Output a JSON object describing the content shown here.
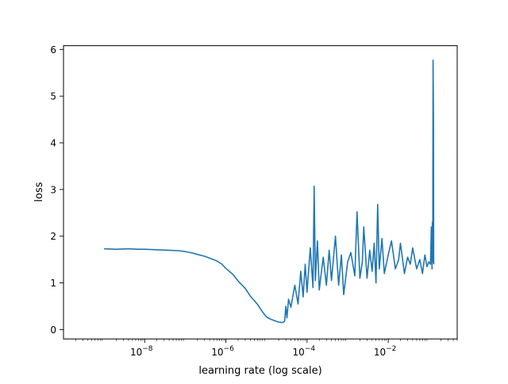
{
  "chart_data": {
    "type": "line",
    "title": "",
    "xlabel": "learning rate (log scale)",
    "ylabel": "loss",
    "x_scale": "log",
    "xlim": [
      1e-10,
      0.5
    ],
    "ylim": [
      -0.2,
      6.08
    ],
    "grid": false,
    "x_ticks": [
      {
        "value": 1e-08,
        "base": "10",
        "exp": "−8"
      },
      {
        "value": 1e-06,
        "base": "10",
        "exp": "−6"
      },
      {
        "value": 0.0001,
        "base": "10",
        "exp": "−4"
      },
      {
        "value": 0.01,
        "base": "10",
        "exp": "−2"
      }
    ],
    "y_ticks": [
      {
        "value": 0,
        "label": "0"
      },
      {
        "value": 1,
        "label": "1"
      },
      {
        "value": 2,
        "label": "2"
      },
      {
        "value": 3,
        "label": "3"
      },
      {
        "value": 4,
        "label": "4"
      },
      {
        "value": 5,
        "label": "5"
      },
      {
        "value": 6,
        "label": "6"
      }
    ],
    "series": [
      {
        "color": "#1f77b4",
        "x": [
          1e-09,
          2e-09,
          4e-09,
          7e-09,
          1e-08,
          2e-08,
          4e-08,
          7e-08,
          1e-07,
          1.5e-07,
          2e-07,
          3e-07,
          4e-07,
          6e-07,
          8e-07,
          1e-06,
          1.5e-06,
          2e-06,
          3e-06,
          4e-06,
          6e-06,
          8e-06,
          1e-05,
          1.3e-05,
          1.7e-05,
          2e-05,
          2.5e-05,
          2.8e-05,
          3e-05,
          3.2e-05,
          3.5e-05,
          4e-05,
          5e-05,
          6e-05,
          7e-05,
          8e-05,
          9e-05,
          0.0001,
          0.00012,
          0.00014,
          0.00015,
          0.00016,
          0.00018,
          0.0002,
          0.00025,
          0.0003,
          0.00035,
          0.0004,
          0.0005,
          0.0006,
          0.0007,
          0.0008,
          0.001,
          0.0012,
          0.0015,
          0.0017,
          0.002,
          0.0023,
          0.0025,
          0.003,
          0.0035,
          0.004,
          0.0045,
          0.005,
          0.0055,
          0.006,
          0.007,
          0.008,
          0.01,
          0.012,
          0.015,
          0.018,
          0.02,
          0.025,
          0.03,
          0.035,
          0.04,
          0.05,
          0.06,
          0.07,
          0.08,
          0.09,
          0.1,
          0.11,
          0.115,
          0.12,
          0.122,
          0.125,
          0.127,
          0.13,
          0.132
        ],
        "y": [
          1.73,
          1.72,
          1.73,
          1.72,
          1.72,
          1.71,
          1.7,
          1.69,
          1.67,
          1.64,
          1.61,
          1.57,
          1.53,
          1.47,
          1.4,
          1.31,
          1.18,
          1.04,
          0.88,
          0.72,
          0.54,
          0.38,
          0.27,
          0.22,
          0.18,
          0.16,
          0.15,
          0.18,
          0.5,
          0.25,
          0.65,
          0.48,
          0.95,
          0.55,
          1.25,
          0.7,
          1.4,
          0.8,
          1.75,
          0.9,
          3.07,
          1.05,
          1.9,
          0.85,
          1.55,
          0.95,
          1.7,
          1.05,
          2.0,
          0.95,
          1.6,
          0.75,
          1.45,
          1.65,
          1.15,
          2.52,
          1.1,
          1.45,
          2.2,
          1.1,
          1.7,
          1.25,
          1.85,
          1.0,
          2.68,
          1.3,
          1.95,
          1.2,
          1.6,
          1.9,
          1.3,
          1.5,
          1.85,
          1.2,
          1.55,
          1.4,
          1.75,
          1.3,
          1.5,
          1.2,
          1.6,
          1.35,
          1.45,
          1.4,
          2.2,
          1.3,
          2.3,
          1.45,
          5.77,
          4.5,
          1.4
        ]
      }
    ]
  }
}
